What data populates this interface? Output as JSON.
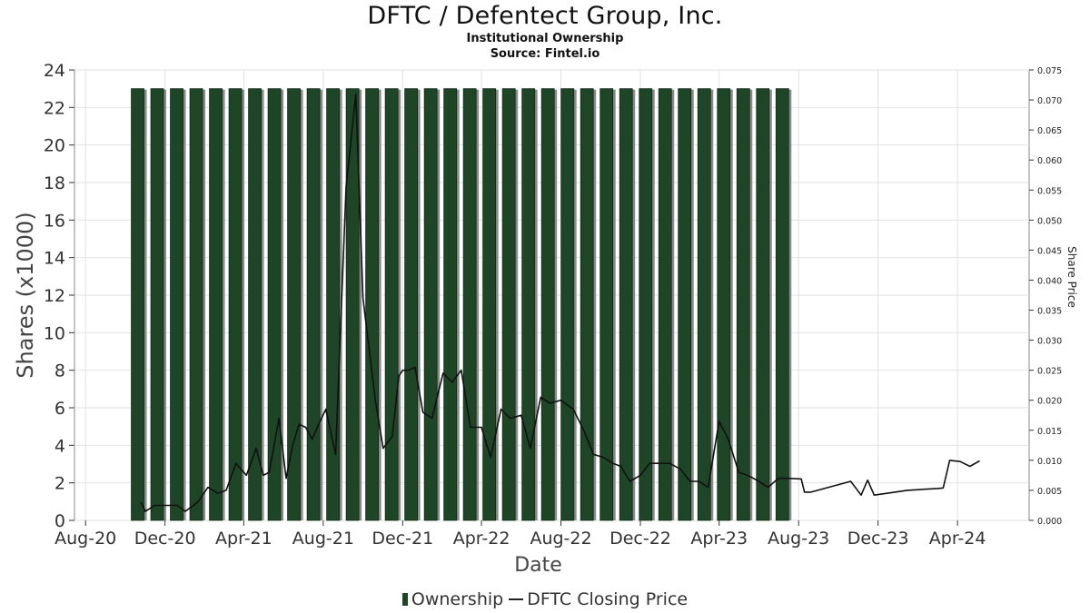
{
  "header": {
    "title": "DFTC / Defentect Group, Inc.",
    "subtitle": "Institutional Ownership",
    "source": "Source: Fintel.io"
  },
  "legend": {
    "ownership": "Ownership",
    "price": "DFTC Closing Price"
  },
  "colors": {
    "bar_fill": "#1e4526",
    "bar_shadow": "#8a8a8a",
    "line": "#111111",
    "grid": "#e2e2e2"
  },
  "chart_data": {
    "type": "bar",
    "xlabel": "Date",
    "ylabel": "Shares (x1000)",
    "y2label": "Share Price",
    "ylim": [
      0,
      24
    ],
    "y2lim": [
      0,
      0.075
    ],
    "x_range": [
      "2020-07-15",
      "2024-07-20"
    ],
    "x_ticks": [
      "Aug-20",
      "Dec-20",
      "Apr-21",
      "Aug-21",
      "Dec-21",
      "Apr-22",
      "Aug-22",
      "Dec-22",
      "Apr-23",
      "Aug-23",
      "Dec-23",
      "Apr-24"
    ],
    "x_tick_dates": [
      "2020-08-01",
      "2020-12-01",
      "2021-04-01",
      "2021-08-01",
      "2021-12-01",
      "2022-04-01",
      "2022-08-01",
      "2022-12-01",
      "2023-04-01",
      "2023-08-01",
      "2023-12-01",
      "2024-04-01"
    ],
    "y_ticks": [
      0,
      2,
      4,
      6,
      8,
      10,
      12,
      14,
      16,
      18,
      20,
      22,
      24
    ],
    "y2_ticks": [
      "0.000",
      "0.005",
      "0.010",
      "0.015",
      "0.020",
      "0.025",
      "0.030",
      "0.035",
      "0.040",
      "0.045",
      "0.050",
      "0.055",
      "0.060",
      "0.065",
      "0.070",
      "0.075"
    ],
    "grid": true,
    "legend_position": "bottom",
    "series": [
      {
        "name": "Ownership",
        "type": "bar",
        "x": [
          "2020-10-20",
          "2020-11-19",
          "2020-12-19",
          "2021-01-18",
          "2021-02-17",
          "2021-03-19",
          "2021-04-18",
          "2021-05-18",
          "2021-06-17",
          "2021-07-17",
          "2021-08-16",
          "2021-09-15",
          "2021-10-15",
          "2021-11-14",
          "2021-12-14",
          "2022-01-13",
          "2022-02-12",
          "2022-03-14",
          "2022-04-13",
          "2022-05-13",
          "2022-06-12",
          "2022-07-12",
          "2022-08-11",
          "2022-09-10",
          "2022-10-10",
          "2022-11-09",
          "2022-12-09",
          "2023-01-08",
          "2023-02-07",
          "2023-03-09",
          "2023-04-08",
          "2023-05-08",
          "2023-06-07",
          "2023-07-07"
        ],
        "values": [
          23,
          23,
          23,
          23,
          23,
          23,
          23,
          23,
          23,
          23,
          23,
          23,
          23,
          23,
          23,
          23,
          23,
          23,
          23,
          23,
          23,
          23,
          23,
          23,
          23,
          23,
          23,
          23,
          23,
          23,
          23,
          23,
          23,
          23
        ]
      },
      {
        "name": "DFTC Closing Price",
        "type": "line",
        "x": [
          "2020-10-25",
          "2020-11-01",
          "2020-11-15",
          "2020-12-05",
          "2020-12-20",
          "2021-01-01",
          "2021-01-20",
          "2021-02-05",
          "2021-02-20",
          "2021-03-05",
          "2021-03-20",
          "2021-04-05",
          "2021-04-20",
          "2021-05-01",
          "2021-05-10",
          "2021-05-25",
          "2021-06-05",
          "2021-06-15",
          "2021-06-25",
          "2021-07-05",
          "2021-07-15",
          "2021-07-25",
          "2021-08-05",
          "2021-08-20",
          "2021-09-05",
          "2021-09-20",
          "2021-10-01",
          "2021-10-20",
          "2021-11-01",
          "2021-11-15",
          "2021-11-25",
          "2021-12-01",
          "2021-12-10",
          "2021-12-20",
          "2022-01-01",
          "2022-01-15",
          "2022-02-01",
          "2022-02-15",
          "2022-03-01",
          "2022-03-15",
          "2022-04-01",
          "2022-04-15",
          "2022-05-01",
          "2022-05-15",
          "2022-06-01",
          "2022-06-15",
          "2022-07-01",
          "2022-07-15",
          "2022-08-01",
          "2022-08-20",
          "2022-09-05",
          "2022-09-20",
          "2022-10-05",
          "2022-10-20",
          "2022-11-01",
          "2022-11-15",
          "2022-12-01",
          "2022-12-15",
          "2023-01-01",
          "2023-01-15",
          "2023-02-01",
          "2023-02-15",
          "2023-03-01",
          "2023-03-15",
          "2023-04-01",
          "2023-04-15",
          "2023-05-01",
          "2023-05-15",
          "2023-06-01",
          "2023-06-15",
          "2023-07-01",
          "2023-07-15",
          "2023-08-05",
          "2023-08-10",
          "2023-08-20",
          "2023-10-20",
          "2023-11-05",
          "2023-11-15",
          "2023-11-25",
          "2024-01-15",
          "2024-03-01",
          "2024-03-10",
          "2024-03-20",
          "2024-04-05",
          "2024-04-20",
          "2024-05-05"
        ],
        "values": [
          0.003,
          0.0015,
          0.0025,
          0.0025,
          0.0025,
          0.0015,
          0.003,
          0.0055,
          0.0045,
          0.005,
          0.0095,
          0.0075,
          0.012,
          0.0075,
          0.008,
          0.017,
          0.007,
          0.0125,
          0.016,
          0.0155,
          0.0135,
          0.016,
          0.0185,
          0.011,
          0.0555,
          0.071,
          0.037,
          0.02,
          0.012,
          0.014,
          0.024,
          0.025,
          0.025,
          0.0255,
          0.018,
          0.017,
          0.0245,
          0.023,
          0.025,
          0.0155,
          0.0155,
          0.0105,
          0.0185,
          0.017,
          0.0175,
          0.012,
          0.0205,
          0.0195,
          0.02,
          0.0185,
          0.015,
          0.011,
          0.0105,
          0.0095,
          0.009,
          0.0065,
          0.0075,
          0.0095,
          0.0095,
          0.0095,
          0.0085,
          0.0065,
          0.0065,
          0.0055,
          0.0165,
          0.0135,
          0.008,
          0.0075,
          0.0065,
          0.0055,
          0.007,
          0.007,
          0.0069,
          0.0047,
          0.0047,
          0.0065,
          0.0042,
          0.0067,
          0.0042,
          0.005,
          0.0053,
          0.0054,
          0.01,
          0.0098,
          0.009,
          0.0099
        ]
      }
    ]
  }
}
